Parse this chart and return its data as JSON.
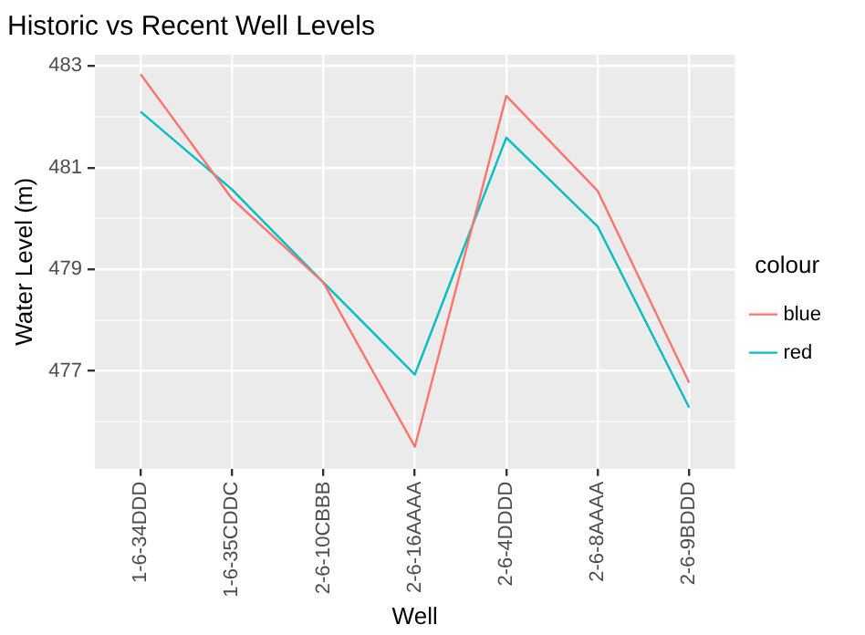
{
  "chart_data": {
    "type": "line",
    "title": "Historic vs Recent Well Levels",
    "xlabel": "Well",
    "ylabel": "Water Level (m)",
    "legend_title": "colour",
    "categories": [
      "1-6-34DDD",
      "1-6-35CDDC",
      "2-6-10CBBB",
      "2-6-16AAAA",
      "2-6-4DDDD",
      "2-6-8AAAA",
      "2-6-9BDDD"
    ],
    "series": [
      {
        "name": "blue",
        "color": "#f8766d",
        "values": [
          482.84,
          480.39,
          478.74,
          475.51,
          482.41,
          480.54,
          476.77
        ]
      },
      {
        "name": "red",
        "color": "#00bfc4",
        "values": [
          482.1,
          480.57,
          478.74,
          476.93,
          481.59,
          479.84,
          476.28
        ]
      }
    ],
    "ylim": [
      475.08,
      483.22
    ],
    "yticks": [
      {
        "value": 476,
        "label": null
      },
      477,
      {
        "value": 478,
        "label": null
      },
      479,
      {
        "value": 480,
        "label": null
      },
      481,
      {
        "value": 482,
        "label": null
      },
      483
    ],
    "grid": true,
    "legend": "right",
    "marker": "none",
    "line_style": "solid"
  }
}
